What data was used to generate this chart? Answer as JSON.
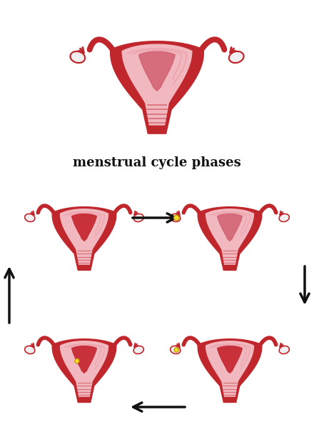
{
  "title": "menstrual cycle phases",
  "title_fontsize": 13,
  "title_fontweight": "bold",
  "bg_color": "#ffffff",
  "outer_dark": "#c0272d",
  "inner_pink": "#f2b8c0",
  "inner_mid": "#e8909a",
  "cavity_red": "#c0272d",
  "cervix_pink": "#e8a0a8",
  "ovary_white": "#f0eeee",
  "ovary_edge": "#c0272d",
  "tube_color": "#c0272d",
  "arrow_color": "#111111",
  "egg_fill": "#f5e030",
  "egg_edge": "#c8a000",
  "fig_width": 4.4,
  "fig_height": 6.26,
  "dpi": 100
}
